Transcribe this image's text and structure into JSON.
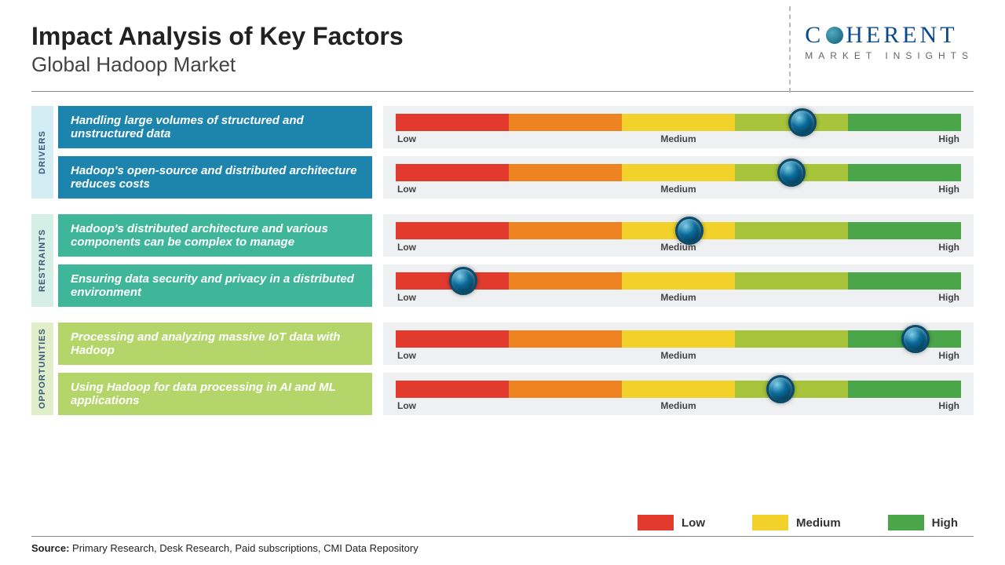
{
  "title": "Impact Analysis of Key Factors",
  "subtitle": "Global Hadoop Market",
  "logo": {
    "line1_a": "C",
    "line1_b": "HERENT",
    "line2": "MARKET INSIGHTS"
  },
  "scale": {
    "low": "Low",
    "med": "Medium",
    "high": "High"
  },
  "gradient_colors": [
    "#e23b2e",
    "#ee8322",
    "#f2d22a",
    "#a8c43a",
    "#4aa648"
  ],
  "categories": [
    {
      "name": "DRIVERS",
      "tab_bg": "#d4edf5",
      "box_bg": "#1c84ad",
      "items": [
        {
          "text": "Handling large volumes of structured and unstructured data",
          "value_pct": 72
        },
        {
          "text": "Hadoop's open-source and distributed architecture reduces costs",
          "value_pct": 70
        }
      ]
    },
    {
      "name": "RESTRAINTS",
      "tab_bg": "#d5efe7",
      "box_bg": "#3fb59a",
      "items": [
        {
          "text": "Hadoop's distributed architecture and various components can be complex to manage",
          "value_pct": 52
        },
        {
          "text": "Ensuring data security and privacy in a distributed environment",
          "value_pct": 12
        }
      ]
    },
    {
      "name": "OPPORTUNITIES",
      "tab_bg": "#e0efc9",
      "box_bg": "#b3d56a",
      "items": [
        {
          "text": "Processing and analyzing massive IoT data with Hadoop",
          "value_pct": 92
        },
        {
          "text": "Using Hadoop for data processing in AI and ML applications",
          "value_pct": 68
        }
      ]
    }
  ],
  "legend": [
    {
      "label": "Low",
      "color": "#e23b2e"
    },
    {
      "label": "Medium",
      "color": "#f2d22a"
    },
    {
      "label": "High",
      "color": "#4aa648"
    }
  ],
  "source": {
    "label": "Source:",
    "text": " Primary Research, Desk Research, Paid subscriptions, CMI Data Repository"
  }
}
